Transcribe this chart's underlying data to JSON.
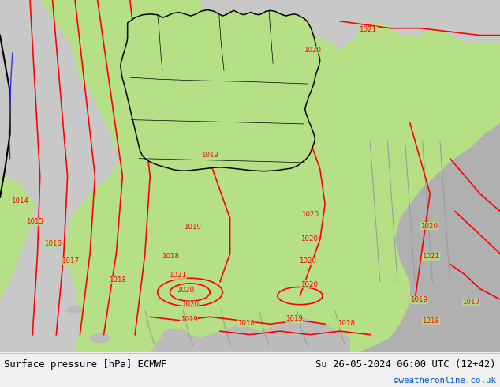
{
  "title_left": "Surface pressure [hPa] ECMWF",
  "title_right": "Su 26-05-2024 06:00 UTC (12+42)",
  "watermark": "©weatheronline.co.uk",
  "green": "#b5e085",
  "grey_light": "#c8c8c8",
  "grey_mid": "#b0b0b0",
  "white_area": "#e8e8e8",
  "red": "#ff0000",
  "black": "#000000",
  "blue": "#0000ff",
  "fig_width": 6.34,
  "fig_height": 4.9,
  "dpi": 100,
  "bottom_bg": "#f0f0f0",
  "link_color": "#0055cc"
}
